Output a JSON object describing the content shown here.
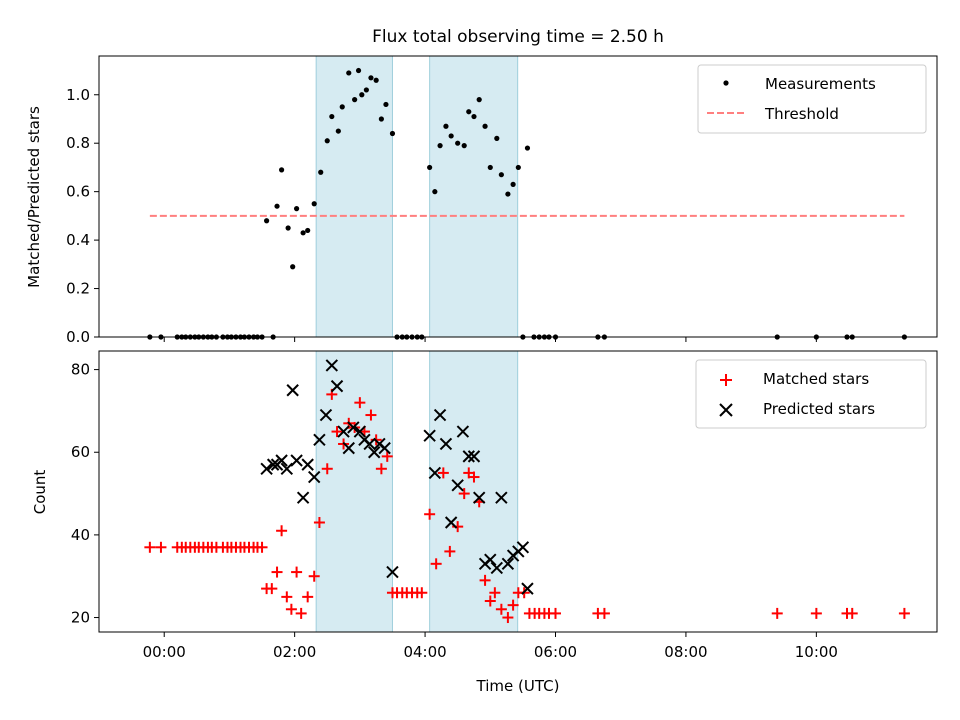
{
  "figure": {
    "title": "Flux total observing time = 2.50 h"
  },
  "chart_data": [
    {
      "type": "scatter",
      "name": "top",
      "ylabel": "Matched/Predicted stars",
      "xlim": [
        -1.0,
        11.85
      ],
      "ylim": [
        0.0,
        1.16
      ],
      "x_ticks": [
        0,
        2,
        4,
        6,
        8,
        10
      ],
      "y_ticks": [
        0.0,
        0.2,
        0.4,
        0.6,
        0.8,
        1.0
      ],
      "y_tick_labels": [
        "0.0",
        "0.2",
        "0.4",
        "0.6",
        "0.8",
        "1.0"
      ],
      "shaded_intervals": [
        [
          2.33,
          3.5
        ],
        [
          4.07,
          5.42
        ]
      ],
      "legend": {
        "position": "upper right",
        "entries": [
          "Measurements",
          "Threshold"
        ]
      },
      "series": [
        {
          "name": "Measurements",
          "marker": "dot",
          "color": "#000000",
          "points": [
            [
              -0.22,
              0.0
            ],
            [
              -0.05,
              0.0
            ],
            [
              0.2,
              0.0
            ],
            [
              0.27,
              0.0
            ],
            [
              0.33,
              0.0
            ],
            [
              0.4,
              0.0
            ],
            [
              0.47,
              0.0
            ],
            [
              0.53,
              0.0
            ],
            [
              0.6,
              0.0
            ],
            [
              0.67,
              0.0
            ],
            [
              0.73,
              0.0
            ],
            [
              0.8,
              0.0
            ],
            [
              0.9,
              0.0
            ],
            [
              0.97,
              0.0
            ],
            [
              1.03,
              0.0
            ],
            [
              1.1,
              0.0
            ],
            [
              1.17,
              0.0
            ],
            [
              1.23,
              0.0
            ],
            [
              1.3,
              0.0
            ],
            [
              1.37,
              0.0
            ],
            [
              1.43,
              0.0
            ],
            [
              1.5,
              0.0
            ],
            [
              1.67,
              0.0
            ],
            [
              1.57,
              0.48
            ],
            [
              1.73,
              0.54
            ],
            [
              1.8,
              0.69
            ],
            [
              1.9,
              0.45
            ],
            [
              1.97,
              0.29
            ],
            [
              2.03,
              0.53
            ],
            [
              2.13,
              0.43
            ],
            [
              2.2,
              0.44
            ],
            [
              2.3,
              0.55
            ],
            [
              2.4,
              0.68
            ],
            [
              2.5,
              0.81
            ],
            [
              2.57,
              0.91
            ],
            [
              2.67,
              0.85
            ],
            [
              2.73,
              0.95
            ],
            [
              2.83,
              1.09
            ],
            [
              2.92,
              0.98
            ],
            [
              2.98,
              1.1
            ],
            [
              3.03,
              1.0
            ],
            [
              3.1,
              1.02
            ],
            [
              3.17,
              1.07
            ],
            [
              3.25,
              1.06
            ],
            [
              3.33,
              0.9
            ],
            [
              3.4,
              0.96
            ],
            [
              3.5,
              0.84
            ],
            [
              3.57,
              0.0
            ],
            [
              3.65,
              0.0
            ],
            [
              3.72,
              0.0
            ],
            [
              3.8,
              0.0
            ],
            [
              3.88,
              0.0
            ],
            [
              3.95,
              0.0
            ],
            [
              4.07,
              0.7
            ],
            [
              4.15,
              0.6
            ],
            [
              4.23,
              0.79
            ],
            [
              4.32,
              0.87
            ],
            [
              4.4,
              0.83
            ],
            [
              4.5,
              0.8
            ],
            [
              4.6,
              0.79
            ],
            [
              4.67,
              0.93
            ],
            [
              4.75,
              0.91
            ],
            [
              4.83,
              0.98
            ],
            [
              4.92,
              0.87
            ],
            [
              5.0,
              0.7
            ],
            [
              5.1,
              0.82
            ],
            [
              5.17,
              0.67
            ],
            [
              5.27,
              0.59
            ],
            [
              5.35,
              0.63
            ],
            [
              5.43,
              0.7
            ],
            [
              5.57,
              0.78
            ],
            [
              5.5,
              0.0
            ],
            [
              5.67,
              0.0
            ],
            [
              5.75,
              0.0
            ],
            [
              5.83,
              0.0
            ],
            [
              5.9,
              0.0
            ],
            [
              6.0,
              0.0
            ],
            [
              6.65,
              0.0
            ],
            [
              6.75,
              0.0
            ],
            [
              9.4,
              0.0
            ],
            [
              10.0,
              0.0
            ],
            [
              10.47,
              0.0
            ],
            [
              10.55,
              0.0
            ],
            [
              11.35,
              0.0
            ]
          ]
        },
        {
          "name": "Threshold",
          "style": "dashed-line",
          "color": "#ff7f7f",
          "points": [
            [
              -0.22,
              0.5
            ],
            [
              11.35,
              0.5
            ]
          ]
        }
      ]
    },
    {
      "type": "scatter",
      "name": "bottom",
      "xlabel": "Time (UTC)",
      "ylabel": "Count",
      "xlim": [
        -1.0,
        11.85
      ],
      "ylim": [
        16.5,
        84.5
      ],
      "x_ticks": [
        0,
        2,
        4,
        6,
        8,
        10
      ],
      "x_tick_labels": [
        "00:00",
        "02:00",
        "04:00",
        "06:00",
        "08:00",
        "10:00"
      ],
      "y_ticks": [
        20,
        40,
        60,
        80
      ],
      "y_tick_labels": [
        "20",
        "40",
        "60",
        "80"
      ],
      "shaded_intervals": [
        [
          2.33,
          3.5
        ],
        [
          4.07,
          5.42
        ]
      ],
      "legend": {
        "position": "upper right",
        "entries": [
          "Matched stars",
          "Predicted stars"
        ]
      },
      "series": [
        {
          "name": "Matched stars",
          "marker": "plus",
          "color": "#ff0000",
          "points": [
            [
              -0.22,
              37
            ],
            [
              -0.05,
              37
            ],
            [
              0.2,
              37
            ],
            [
              0.27,
              37
            ],
            [
              0.33,
              37
            ],
            [
              0.4,
              37
            ],
            [
              0.47,
              37
            ],
            [
              0.53,
              37
            ],
            [
              0.6,
              37
            ],
            [
              0.67,
              37
            ],
            [
              0.73,
              37
            ],
            [
              0.8,
              37
            ],
            [
              0.9,
              37
            ],
            [
              0.97,
              37
            ],
            [
              1.03,
              37
            ],
            [
              1.1,
              37
            ],
            [
              1.17,
              37
            ],
            [
              1.23,
              37
            ],
            [
              1.3,
              37
            ],
            [
              1.37,
              37
            ],
            [
              1.43,
              37
            ],
            [
              1.5,
              37
            ],
            [
              1.57,
              27
            ],
            [
              1.65,
              27
            ],
            [
              1.73,
              31
            ],
            [
              1.8,
              41
            ],
            [
              1.88,
              25
            ],
            [
              1.95,
              22
            ],
            [
              2.03,
              31
            ],
            [
              2.1,
              21
            ],
            [
              2.2,
              25
            ],
            [
              2.3,
              30
            ],
            [
              2.38,
              43
            ],
            [
              2.5,
              56
            ],
            [
              2.57,
              74
            ],
            [
              2.65,
              65
            ],
            [
              2.75,
              62
            ],
            [
              2.83,
              67
            ],
            [
              2.92,
              66
            ],
            [
              3.0,
              72
            ],
            [
              3.07,
              65
            ],
            [
              3.17,
              69
            ],
            [
              3.25,
              63
            ],
            [
              3.33,
              56
            ],
            [
              3.42,
              59
            ],
            [
              3.5,
              26
            ],
            [
              3.57,
              26
            ],
            [
              3.65,
              26
            ],
            [
              3.72,
              26
            ],
            [
              3.8,
              26
            ],
            [
              3.88,
              26
            ],
            [
              3.95,
              26
            ],
            [
              4.07,
              45
            ],
            [
              4.17,
              33
            ],
            [
              4.28,
              55
            ],
            [
              4.38,
              36
            ],
            [
              4.5,
              42
            ],
            [
              4.6,
              50
            ],
            [
              4.67,
              55
            ],
            [
              4.75,
              54
            ],
            [
              4.83,
              48
            ],
            [
              4.92,
              29
            ],
            [
              5.0,
              24
            ],
            [
              5.07,
              26
            ],
            [
              5.17,
              22
            ],
            [
              5.27,
              20
            ],
            [
              5.35,
              23
            ],
            [
              5.43,
              26
            ],
            [
              5.52,
              26
            ],
            [
              5.6,
              21
            ],
            [
              5.68,
              21
            ],
            [
              5.75,
              21
            ],
            [
              5.83,
              21
            ],
            [
              5.9,
              21
            ],
            [
              6.0,
              21
            ],
            [
              6.65,
              21
            ],
            [
              6.75,
              21
            ],
            [
              9.4,
              21
            ],
            [
              10.0,
              21
            ],
            [
              10.47,
              21
            ],
            [
              10.55,
              21
            ],
            [
              11.35,
              21
            ]
          ]
        },
        {
          "name": "Predicted stars",
          "marker": "x",
          "color": "#000000",
          "points": [
            [
              1.57,
              56
            ],
            [
              1.67,
              57
            ],
            [
              1.73,
              57
            ],
            [
              1.8,
              58
            ],
            [
              1.88,
              56
            ],
            [
              1.97,
              75
            ],
            [
              2.03,
              58
            ],
            [
              2.13,
              49
            ],
            [
              2.2,
              57
            ],
            [
              2.3,
              54
            ],
            [
              2.38,
              63
            ],
            [
              2.48,
              69
            ],
            [
              2.57,
              81
            ],
            [
              2.65,
              76
            ],
            [
              2.75,
              65
            ],
            [
              2.83,
              61
            ],
            [
              2.9,
              66
            ],
            [
              3.0,
              65
            ],
            [
              3.07,
              63
            ],
            [
              3.15,
              62
            ],
            [
              3.22,
              60
            ],
            [
              3.3,
              62
            ],
            [
              3.38,
              61
            ],
            [
              3.5,
              31
            ],
            [
              4.07,
              64
            ],
            [
              4.15,
              55
            ],
            [
              4.23,
              69
            ],
            [
              4.32,
              62
            ],
            [
              4.4,
              43
            ],
            [
              4.5,
              52
            ],
            [
              4.58,
              65
            ],
            [
              4.67,
              59
            ],
            [
              4.75,
              59
            ],
            [
              4.83,
              49
            ],
            [
              4.92,
              33
            ],
            [
              5.0,
              34
            ],
            [
              5.1,
              32
            ],
            [
              5.17,
              49
            ],
            [
              5.27,
              33
            ],
            [
              5.35,
              35
            ],
            [
              5.43,
              36
            ],
            [
              5.5,
              37
            ],
            [
              5.57,
              27
            ]
          ]
        }
      ]
    }
  ]
}
